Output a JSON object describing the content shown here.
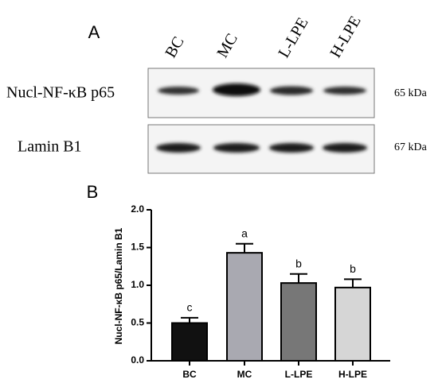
{
  "blot": {
    "label": "A",
    "lanes": [
      "BC",
      "MC",
      "L-LPE",
      "H-LPE"
    ],
    "rows": [
      {
        "name": "Nucl-NF-κB p65",
        "size": "65 kDa"
      },
      {
        "name": "Lamin B1",
        "size": "67 kDa"
      }
    ]
  },
  "chart_data": {
    "type": "bar",
    "panel_label": "B",
    "ylabel": "Nucl-NF-κB p65/Lamin B1",
    "categories": [
      "BC",
      "MC",
      "L-LPE",
      "H-LPE"
    ],
    "values": [
      0.5,
      1.43,
      1.03,
      0.97
    ],
    "errors": [
      0.07,
      0.12,
      0.12,
      0.11
    ],
    "annotations": [
      "c",
      "a",
      "b",
      "b"
    ],
    "colors": [
      "#111111",
      "#a9a9b1",
      "#777777",
      "#d6d6d6"
    ],
    "ylim": [
      0,
      2
    ],
    "yticks": [
      {
        "value": 0,
        "label": "0.0"
      },
      {
        "value": 0.5,
        "label": "0.5"
      },
      {
        "value": 1,
        "label": "1.0"
      },
      {
        "value": 1.5,
        "label": "1.5"
      },
      {
        "value": 2,
        "label": "2.0"
      }
    ]
  }
}
